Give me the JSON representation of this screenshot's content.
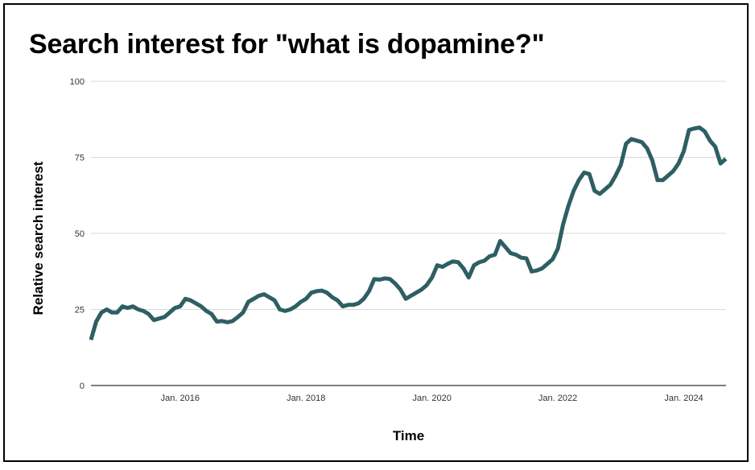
{
  "chart_data": {
    "type": "line",
    "title": "Search interest for \"what is dopamine?\"",
    "xlabel": "Time",
    "ylabel": "Relative search interest",
    "ylim": [
      0,
      100
    ],
    "yticks": [
      0,
      25,
      50,
      75,
      100
    ],
    "ytick_labels": [
      "0",
      "25",
      "50",
      "75",
      "100"
    ],
    "xticks": [
      "2016-01",
      "2018-01",
      "2020-01",
      "2022-01",
      "2024-01"
    ],
    "xtick_labels": [
      "Jan. 2016",
      "Jan. 2018",
      "Jan. 2020",
      "Jan. 2022",
      "Jan. 2024"
    ],
    "xlim": [
      "2014-08",
      "2024-08"
    ],
    "grid": true,
    "line_color": "#2e5f62",
    "series": [
      {
        "values": [
          [
            "2014-08",
            15
          ],
          [
            "2014-09",
            21
          ],
          [
            "2014-10",
            24
          ],
          [
            "2014-11",
            25
          ],
          [
            "2014-12",
            24
          ],
          [
            "2015-01",
            24
          ],
          [
            "2015-02",
            26
          ],
          [
            "2015-03",
            25.5
          ],
          [
            "2015-04",
            26
          ],
          [
            "2015-05",
            25
          ],
          [
            "2015-06",
            24.5
          ],
          [
            "2015-07",
            23.5
          ],
          [
            "2015-08",
            21.5
          ],
          [
            "2015-09",
            22
          ],
          [
            "2015-10",
            22.5
          ],
          [
            "2015-11",
            24
          ],
          [
            "2015-12",
            25.5
          ],
          [
            "2016-01",
            26
          ],
          [
            "2016-02",
            28.5
          ],
          [
            "2016-03",
            28
          ],
          [
            "2016-04",
            27
          ],
          [
            "2016-05",
            26
          ],
          [
            "2016-06",
            24.5
          ],
          [
            "2016-07",
            23.5
          ],
          [
            "2016-08",
            21
          ],
          [
            "2016-09",
            21.2
          ],
          [
            "2016-10",
            20.8
          ],
          [
            "2016-11",
            21.2
          ],
          [
            "2016-12",
            22.5
          ],
          [
            "2017-01",
            24
          ],
          [
            "2017-02",
            27.5
          ],
          [
            "2017-03",
            28.5
          ],
          [
            "2017-04",
            29.5
          ],
          [
            "2017-05",
            30
          ],
          [
            "2017-06",
            29
          ],
          [
            "2017-07",
            28
          ],
          [
            "2017-08",
            25
          ],
          [
            "2017-09",
            24.5
          ],
          [
            "2017-10",
            25
          ],
          [
            "2017-11",
            26
          ],
          [
            "2017-12",
            27.5
          ],
          [
            "2018-01",
            28.5
          ],
          [
            "2018-02",
            30.5
          ],
          [
            "2018-03",
            31
          ],
          [
            "2018-04",
            31.2
          ],
          [
            "2018-05",
            30.5
          ],
          [
            "2018-06",
            29
          ],
          [
            "2018-07",
            28
          ],
          [
            "2018-08",
            26
          ],
          [
            "2018-09",
            26.5
          ],
          [
            "2018-10",
            26.5
          ],
          [
            "2018-11",
            27
          ],
          [
            "2018-12",
            28.5
          ],
          [
            "2019-01",
            31
          ],
          [
            "2019-02",
            35
          ],
          [
            "2019-03",
            34.8
          ],
          [
            "2019-04",
            35.2
          ],
          [
            "2019-05",
            35
          ],
          [
            "2019-06",
            33.5
          ],
          [
            "2019-07",
            31.5
          ],
          [
            "2019-08",
            28.5
          ],
          [
            "2019-09",
            29.5
          ],
          [
            "2019-10",
            30.5
          ],
          [
            "2019-11",
            31.5
          ],
          [
            "2019-12",
            33
          ],
          [
            "2020-01",
            35.5
          ],
          [
            "2020-02",
            39.5
          ],
          [
            "2020-03",
            39
          ],
          [
            "2020-04",
            40
          ],
          [
            "2020-05",
            40.8
          ],
          [
            "2020-06",
            40.5
          ],
          [
            "2020-07",
            38.5
          ],
          [
            "2020-08",
            35.5
          ],
          [
            "2020-09",
            39.5
          ],
          [
            "2020-10",
            40.5
          ],
          [
            "2020-11",
            41
          ],
          [
            "2020-12",
            42.5
          ],
          [
            "2021-01",
            43
          ],
          [
            "2021-02",
            47.5
          ],
          [
            "2021-03",
            45.5
          ],
          [
            "2021-04",
            43.5
          ],
          [
            "2021-05",
            43
          ],
          [
            "2021-06",
            42
          ],
          [
            "2021-07",
            41.8
          ],
          [
            "2021-08",
            37.5
          ],
          [
            "2021-09",
            37.8
          ],
          [
            "2021-10",
            38.5
          ],
          [
            "2021-11",
            40
          ],
          [
            "2021-12",
            41.5
          ],
          [
            "2022-01",
            45
          ],
          [
            "2022-02",
            53
          ],
          [
            "2022-03",
            59
          ],
          [
            "2022-04",
            64
          ],
          [
            "2022-05",
            67.5
          ],
          [
            "2022-06",
            70
          ],
          [
            "2022-07",
            69.5
          ],
          [
            "2022-08",
            64
          ],
          [
            "2022-09",
            63
          ],
          [
            "2022-10",
            64.5
          ],
          [
            "2022-11",
            66
          ],
          [
            "2022-12",
            69
          ],
          [
            "2023-01",
            72.5
          ],
          [
            "2023-02",
            79.5
          ],
          [
            "2023-03",
            81
          ],
          [
            "2023-04",
            80.5
          ],
          [
            "2023-05",
            80
          ],
          [
            "2023-06",
            78
          ],
          [
            "2023-07",
            74
          ],
          [
            "2023-08",
            67.5
          ],
          [
            "2023-09",
            67.5
          ],
          [
            "2023-10",
            69
          ],
          [
            "2023-11",
            70.5
          ],
          [
            "2023-12",
            73
          ],
          [
            "2024-01",
            77
          ],
          [
            "2024-02",
            84
          ],
          [
            "2024-03",
            84.5
          ],
          [
            "2024-04",
            84.8
          ],
          [
            "2024-05",
            83.5
          ],
          [
            "2024-06",
            80.5
          ],
          [
            "2024-07",
            78.5
          ],
          [
            "2024-08",
            73
          ],
          [
            "2024-09",
            74.5
          ]
        ]
      }
    ]
  }
}
